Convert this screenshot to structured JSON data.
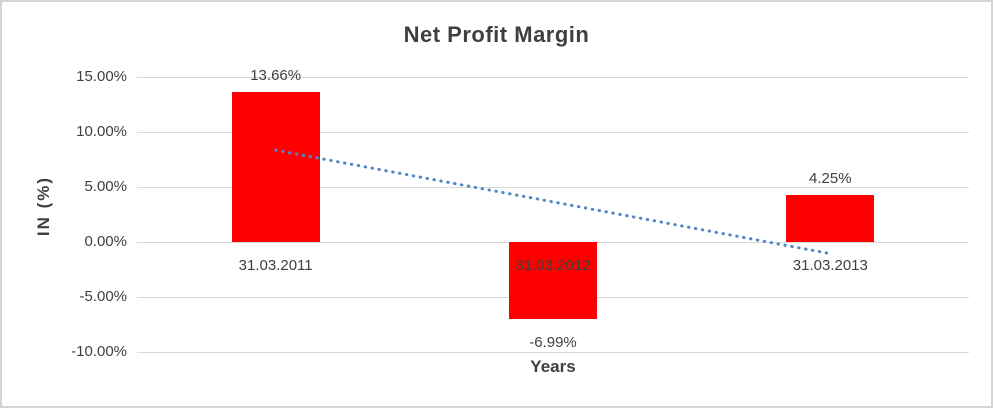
{
  "chart_data": {
    "type": "bar",
    "title": "Net Profit Margin",
    "xlabel": "Years",
    "ylabel": "IN (%)",
    "categories": [
      "31.03.2011",
      "31.03.2012",
      "31.03.2013"
    ],
    "values": [
      13.66,
      -6.99,
      4.25
    ],
    "value_labels": [
      "13.66%",
      "-6.99%",
      "4.25%"
    ],
    "y_ticks": [
      15,
      10,
      5,
      0,
      -5,
      -10
    ],
    "y_tick_labels": [
      "15.00%",
      "10.00%",
      "5.00%",
      "0.00%",
      "-5.00%",
      "-10.00%"
    ],
    "ylim": [
      -10,
      15
    ],
    "grid": true,
    "legend_position": "none",
    "bar_color": "#FF0000",
    "trendline": {
      "type": "linear",
      "style": "dotted",
      "color": "#4F86C6",
      "start_value": 8.35,
      "end_value": -1.06
    },
    "text_color": "#3f3f3f",
    "gridline_color": "#d9d9d9",
    "border_color": "#d4d4d4",
    "background": "#FFFFFF"
  }
}
